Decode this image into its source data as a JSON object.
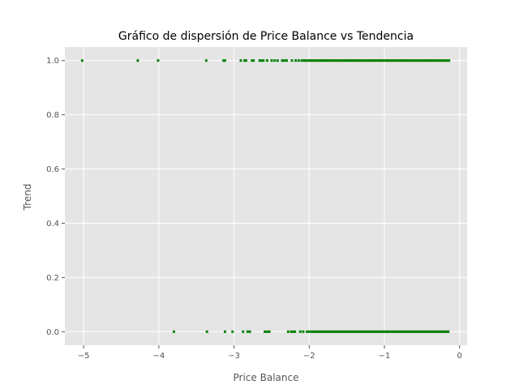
{
  "chart_data": {
    "type": "scatter",
    "title": "Gráfico de dispersión de Price Balance vs Tendencia",
    "xlabel": "Price Balance",
    "ylabel": "Trend",
    "xlim": [
      -5.25,
      0.1
    ],
    "ylim": [
      -0.05,
      1.05
    ],
    "x_ticks": [
      -5,
      -4,
      -3,
      -2,
      -1,
      0
    ],
    "x_tick_labels": [
      "−5",
      "−4",
      "−3",
      "−2",
      "−1",
      "0"
    ],
    "y_ticks": [
      0.0,
      0.2,
      0.4,
      0.6,
      0.8,
      1.0
    ],
    "y_tick_labels": [
      "0.0",
      "0.2",
      "0.4",
      "0.6",
      "0.8",
      "1.0"
    ],
    "grid": true,
    "background_color": "#e5e5e5",
    "grid_color": "#ffffff",
    "marker_color": "#008000",
    "series": [
      {
        "y": 1,
        "x": [
          -5.02,
          -4.28,
          -4.01,
          -3.37,
          -3.14,
          -3.12,
          -2.91,
          -2.86,
          -2.84,
          -2.76,
          -2.74,
          -2.66,
          -2.63,
          -2.61,
          -2.56,
          -2.5,
          -2.46,
          -2.42,
          -2.36,
          -2.33,
          -2.3,
          -2.23,
          -2.18,
          -2.14,
          -2.1,
          -2.07,
          -2.05,
          -2.02,
          -2.0,
          -1.98,
          -1.96,
          -1.94,
          -1.92,
          -1.9,
          -1.88,
          -1.86,
          -1.84,
          -1.82,
          -1.8,
          -1.78,
          -1.76,
          -1.74,
          -1.72,
          -1.7,
          -1.68,
          -1.66,
          -1.64,
          -1.62,
          -1.6,
          -1.58,
          -1.56,
          -1.54,
          -1.52,
          -1.5,
          -1.48,
          -1.46,
          -1.44,
          -1.42,
          -1.4,
          -1.38,
          -1.36,
          -1.34,
          -1.32,
          -1.3,
          -1.28,
          -1.26,
          -1.24,
          -1.22,
          -1.2,
          -1.18,
          -1.16,
          -1.14,
          -1.12,
          -1.1,
          -1.08,
          -1.06,
          -1.04,
          -1.02,
          -1.0,
          -0.98,
          -0.96,
          -0.94,
          -0.92,
          -0.9,
          -0.88,
          -0.86,
          -0.84,
          -0.82,
          -0.8,
          -0.78,
          -0.76,
          -0.74,
          -0.72,
          -0.7,
          -0.68,
          -0.66,
          -0.64,
          -0.62,
          -0.6,
          -0.58,
          -0.56,
          -0.54,
          -0.52,
          -0.5,
          -0.48,
          -0.46,
          -0.44,
          -0.42,
          -0.4,
          -0.38,
          -0.36,
          -0.34,
          -0.32,
          -0.3,
          -0.28,
          -0.26,
          -0.24,
          -0.22,
          -0.2,
          -0.18,
          -0.16,
          -0.14
        ]
      },
      {
        "y": 0,
        "x": [
          -3.8,
          -3.36,
          -3.12,
          -3.02,
          -2.88,
          -2.82,
          -2.79,
          -2.59,
          -2.56,
          -2.53,
          -2.28,
          -2.24,
          -2.22,
          -2.19,
          -2.12,
          -2.08,
          -2.03,
          -2.0,
          -1.97,
          -1.95,
          -1.93,
          -1.91,
          -1.89,
          -1.87,
          -1.85,
          -1.83,
          -1.81,
          -1.79,
          -1.77,
          -1.75,
          -1.73,
          -1.71,
          -1.69,
          -1.67,
          -1.65,
          -1.63,
          -1.61,
          -1.59,
          -1.57,
          -1.55,
          -1.53,
          -1.51,
          -1.49,
          -1.47,
          -1.45,
          -1.43,
          -1.41,
          -1.39,
          -1.37,
          -1.35,
          -1.33,
          -1.31,
          -1.29,
          -1.27,
          -1.25,
          -1.23,
          -1.21,
          -1.19,
          -1.17,
          -1.15,
          -1.13,
          -1.11,
          -1.09,
          -1.07,
          -1.05,
          -1.03,
          -1.01,
          -0.99,
          -0.97,
          -0.95,
          -0.93,
          -0.91,
          -0.89,
          -0.87,
          -0.85,
          -0.83,
          -0.81,
          -0.79,
          -0.77,
          -0.75,
          -0.73,
          -0.71,
          -0.69,
          -0.67,
          -0.65,
          -0.63,
          -0.61,
          -0.59,
          -0.57,
          -0.55,
          -0.53,
          -0.51,
          -0.49,
          -0.47,
          -0.45,
          -0.43,
          -0.41,
          -0.39,
          -0.37,
          -0.35,
          -0.33,
          -0.31,
          -0.29,
          -0.27,
          -0.25,
          -0.23,
          -0.21,
          -0.19,
          -0.17,
          -0.15
        ]
      }
    ]
  }
}
